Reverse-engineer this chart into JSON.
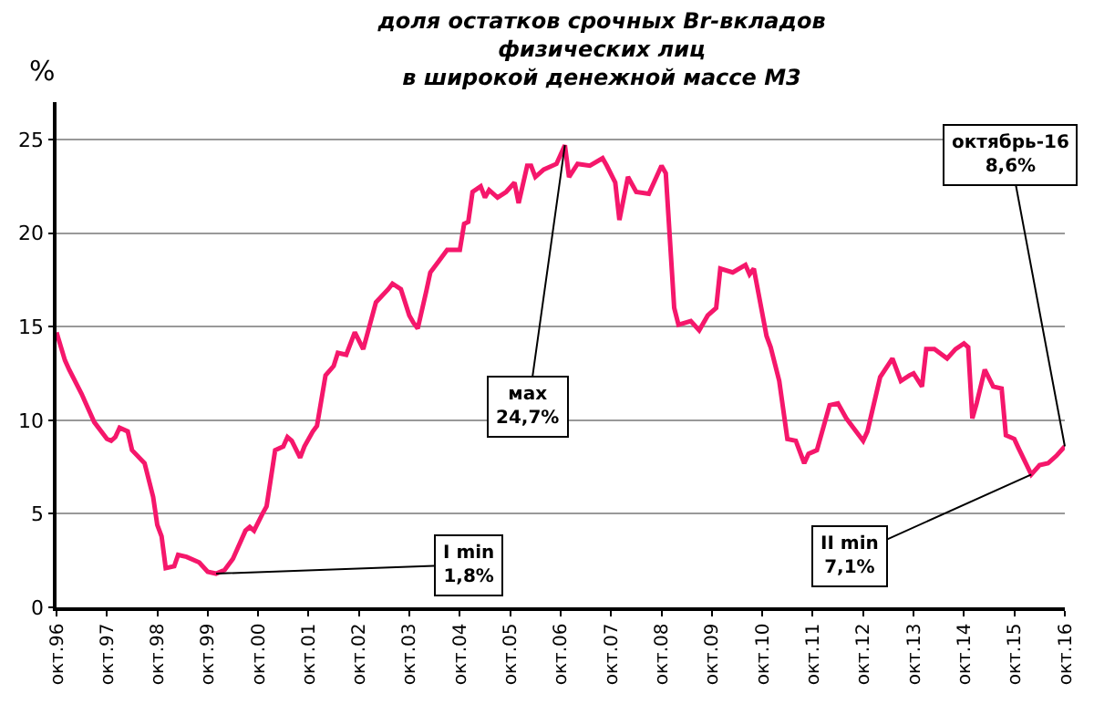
{
  "chart_data": {
    "type": "line",
    "title": "доля остатков срочных Br-вкладов\nфизических лиц\nв широкой денежной массе М3",
    "ylabel": "%",
    "x": [
      "1996-10",
      "1996-12",
      "1997-01",
      "1997-04",
      "1997-05",
      "1997-07",
      "1997-10",
      "1997-11",
      "1997-12",
      "1998-01",
      "1998-03",
      "1998-04",
      "1998-07",
      "1998-09",
      "1998-10",
      "1998-11",
      "1998-12",
      "1999-02",
      "1999-03",
      "1999-05",
      "1999-08",
      "1999-10",
      "1999-12",
      "2000-02",
      "2000-04",
      "2000-07",
      "2000-08",
      "2000-09",
      "2000-11",
      "2000-12",
      "2001-02",
      "2001-04",
      "2001-05",
      "2001-06",
      "2001-08",
      "2001-09",
      "2001-11",
      "2001-12",
      "2002-02",
      "2002-04",
      "2002-05",
      "2002-07",
      "2002-09",
      "2002-11",
      "2003-02",
      "2003-05",
      "2003-06",
      "2003-08",
      "2003-10",
      "2003-11",
      "2003-12",
      "2004-02",
      "2004-03",
      "2004-05",
      "2004-07",
      "2004-10",
      "2004-11",
      "2004-12",
      "2005-01",
      "2005-03",
      "2005-04",
      "2005-05",
      "2005-07",
      "2005-09",
      "2005-11",
      "2005-12",
      "2006-02",
      "2006-03",
      "2006-04",
      "2006-06",
      "2006-09",
      "2006-11",
      "2006-12",
      "2007-02",
      "2007-05",
      "2007-08",
      "2007-09",
      "2007-11",
      "2007-12",
      "2008-02",
      "2008-04",
      "2008-07",
      "2008-10",
      "2008-11",
      "2009-01",
      "2009-02",
      "2009-05",
      "2009-07",
      "2009-09",
      "2009-11",
      "2009-12",
      "2010-03",
      "2010-06",
      "2010-07",
      "2010-08",
      "2010-11",
      "2010-12",
      "2011-02",
      "2011-04",
      "2011-06",
      "2011-08",
      "2011-09",
      "2011-11",
      "2012-02",
      "2012-04",
      "2012-06",
      "2012-10",
      "2012-11",
      "2013-02",
      "2013-05",
      "2013-07",
      "2013-09",
      "2013-10",
      "2013-12",
      "2014-01",
      "2014-03",
      "2014-06",
      "2014-08",
      "2014-10",
      "2014-11",
      "2014-12",
      "2015-01",
      "2015-03",
      "2015-05",
      "2015-07",
      "2015-08",
      "2015-10",
      "2015-11",
      "2016-02",
      "2016-04",
      "2016-06",
      "2016-08",
      "2016-10"
    ],
    "series": [
      {
        "color": "#f5176b",
        "values": [
          14.7,
          13.2,
          12.7,
          11.4,
          10.9,
          9.9,
          9.0,
          8.9,
          9.1,
          9.6,
          9.4,
          8.4,
          7.7,
          5.9,
          4.4,
          3.8,
          2.1,
          2.2,
          2.8,
          2.7,
          2.4,
          1.9,
          1.8,
          2.0,
          2.6,
          4.1,
          4.3,
          4.1,
          5.0,
          5.4,
          8.4,
          8.6,
          9.1,
          8.9,
          8.0,
          8.6,
          9.4,
          9.7,
          12.4,
          12.9,
          13.6,
          13.5,
          14.7,
          13.8,
          16.3,
          17.0,
          17.3,
          17.0,
          15.6,
          15.2,
          14.9,
          16.9,
          17.9,
          18.5,
          19.1,
          19.1,
          20.5,
          20.6,
          22.2,
          22.5,
          21.9,
          22.3,
          21.9,
          22.2,
          22.7,
          21.6,
          23.6,
          23.6,
          23.0,
          23.4,
          23.7,
          24.7,
          23.0,
          23.7,
          23.6,
          24.0,
          23.6,
          22.7,
          20.7,
          23.0,
          22.2,
          22.1,
          23.6,
          23.2,
          16.0,
          15.1,
          15.3,
          14.8,
          15.6,
          16.0,
          18.1,
          17.9,
          18.3,
          17.8,
          18.1,
          14.5,
          13.9,
          12.1,
          9.0,
          8.9,
          7.7,
          8.2,
          8.4,
          10.8,
          10.9,
          10.1,
          8.9,
          9.4,
          12.3,
          13.3,
          12.1,
          12.4,
          12.5,
          11.8,
          13.8,
          13.8,
          13.3,
          13.8,
          14.1,
          13.9,
          10.1,
          10.9,
          12.7,
          11.8,
          11.7,
          9.2,
          9.0,
          8.5,
          7.1,
          7.6,
          7.7,
          8.1,
          8.6
        ]
      }
    ],
    "xlim": [
      "1996-10",
      "2016-10"
    ],
    "xticks": [
      {
        "value": "1996-10",
        "label": "окт.96"
      },
      {
        "value": "1997-10",
        "label": "окт.97"
      },
      {
        "value": "1998-10",
        "label": "окт.98"
      },
      {
        "value": "1999-10",
        "label": "окт.99"
      },
      {
        "value": "2000-10",
        "label": "окт.00"
      },
      {
        "value": "2001-10",
        "label": "окт.01"
      },
      {
        "value": "2002-10",
        "label": "окт.02"
      },
      {
        "value": "2003-10",
        "label": "окт.03"
      },
      {
        "value": "2004-10",
        "label": "окт.04"
      },
      {
        "value": "2005-10",
        "label": "окт.05"
      },
      {
        "value": "2006-10",
        "label": "окт.06"
      },
      {
        "value": "2007-10",
        "label": "окт.07"
      },
      {
        "value": "2008-10",
        "label": "окт.08"
      },
      {
        "value": "2009-10",
        "label": "окт.09"
      },
      {
        "value": "2010-10",
        "label": "окт.10"
      },
      {
        "value": "2011-10",
        "label": "окт.11"
      },
      {
        "value": "2012-10",
        "label": "окт.12"
      },
      {
        "value": "2013-10",
        "label": "окт.13"
      },
      {
        "value": "2014-10",
        "label": "окт.14"
      },
      {
        "value": "2015-10",
        "label": "окт.15"
      },
      {
        "value": "2016-10",
        "label": "окт.16"
      }
    ],
    "ylim": [
      0,
      27
    ],
    "yticks": [
      0,
      5,
      10,
      15,
      20,
      25
    ],
    "grid": "y",
    "annotations": [
      {
        "text": "мах\n24,7%",
        "x": "2006-11",
        "y": 24.7
      },
      {
        "text": "I min\n1,8%",
        "x": "1999-12",
        "y": 1.8
      },
      {
        "text": "II min\n7,1%",
        "x": "2016-02",
        "y": 7.1
      },
      {
        "text": "октябрь-16\n8,6%",
        "x": "2016-10",
        "y": 8.6
      }
    ]
  }
}
